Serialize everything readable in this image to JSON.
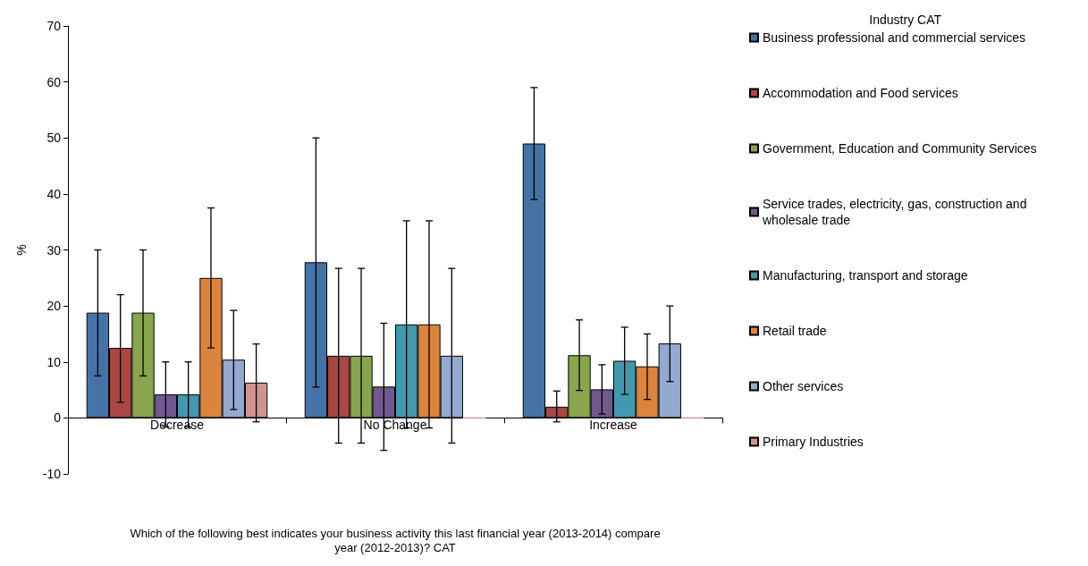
{
  "chart_data": {
    "type": "bar",
    "xlabel": "Which of the following best indicates your business activity this last financial year (2013-2014) compare\nyear (2012-2013)? CAT",
    "ylabel": "%",
    "legend_title": "Industry CAT",
    "categories": [
      "Decrease",
      "No Change",
      "Increase"
    ],
    "series": [
      {
        "name": "Business professional and commercial services",
        "color": "#4572a7",
        "values": [
          18.8,
          27.8,
          49
        ],
        "errors": [
          [
            7.5,
            30
          ],
          [
            5.5,
            50
          ],
          [
            39,
            59
          ]
        ]
      },
      {
        "name": "Accommodation and Food services",
        "color": "#aa4643",
        "values": [
          12.5,
          11.1,
          2
        ],
        "errors": [
          [
            2.8,
            22
          ],
          [
            -4.5,
            26.7
          ],
          [
            -0.7,
            4.8
          ]
        ]
      },
      {
        "name": "Government, Education and Community Services",
        "color": "#89a54e",
        "values": [
          18.8,
          11.1,
          11.2
        ],
        "errors": [
          [
            7.5,
            30
          ],
          [
            -4.5,
            26.7
          ],
          [
            4.9,
            17.5
          ]
        ]
      },
      {
        "name": "Service trades, electricity, gas, construction and wholesale trade",
        "color": "#71588f",
        "values": [
          4.2,
          5.6,
          5.1
        ],
        "errors": [
          [
            -1.6,
            10
          ],
          [
            -5.8,
            16.9
          ],
          [
            0.7,
            9.5
          ]
        ]
      },
      {
        "name": "Manufacturing, transport and storage",
        "color": "#4198af",
        "values": [
          4.2,
          16.7,
          10.2
        ],
        "errors": [
          [
            -1.6,
            10
          ],
          [
            -1.8,
            35.2
          ],
          [
            4.2,
            16.2
          ]
        ]
      },
      {
        "name": "Retail trade",
        "color": "#db843d",
        "values": [
          25,
          16.7,
          9.2
        ],
        "errors": [
          [
            12.5,
            37.5
          ],
          [
            -1.8,
            35.2
          ],
          [
            3.3,
            15
          ]
        ]
      },
      {
        "name": "Other services",
        "color": "#93a9cf",
        "values": [
          10.4,
          11.1,
          13.3
        ],
        "errors": [
          [
            1.5,
            19.2
          ],
          [
            -4.5,
            26.7
          ],
          [
            6.5,
            20
          ]
        ]
      },
      {
        "name": "Primary Industries",
        "color": "#d19392",
        "values": [
          6.3,
          0,
          0
        ],
        "errors": [
          [
            -0.7,
            13.2
          ],
          null,
          null
        ]
      }
    ],
    "ylim": [
      -10,
      70
    ],
    "yticks": [
      -10,
      0,
      10,
      20,
      30,
      40,
      50,
      60,
      70
    ],
    "grid": false,
    "legend": "right"
  }
}
